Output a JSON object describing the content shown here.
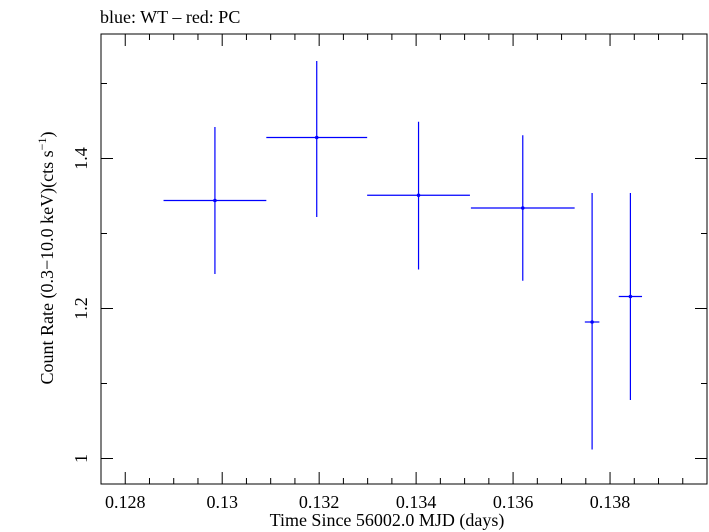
{
  "chart_data": {
    "type": "scatter",
    "title": "blue: WT – red: PC",
    "xlabel": "Time Since 56002.0 MJD (days)",
    "ylabel": "Count Rate (0.3−10.0 keV)(cts s⁻¹)",
    "ylabel_parts": {
      "prefix": "Count Rate (0.3−10.0 keV)(cts s",
      "superscript": "−1",
      "suffix": ")"
    },
    "xlim": [
      0.1275,
      0.14
    ],
    "ylim": [
      0.966,
      1.566
    ],
    "xticks_major": [
      0.128,
      0.13,
      0.132,
      0.134,
      0.136,
      0.138
    ],
    "xtick_labels": [
      "0.128",
      "0.13",
      "0.132",
      "0.134",
      "0.136",
      "0.138"
    ],
    "yticks_major": [
      1.0,
      1.2,
      1.4
    ],
    "ytick_labels": [
      "1",
      "1.2",
      "1.4"
    ],
    "xticks_minor_step": 0.0005,
    "yticks_minor_step": 0.1,
    "series": [
      {
        "name": "WT",
        "color": "#0000ff",
        "points": [
          {
            "x": 0.12985,
            "xerr": 0.00106,
            "y": 1.344,
            "yerr_low": 0.098,
            "yerr_high": 0.098
          },
          {
            "x": 0.13195,
            "xerr": 0.00104,
            "y": 1.428,
            "yerr_low": 0.106,
            "yerr_high": 0.102
          },
          {
            "x": 0.13405,
            "xerr": 0.00106,
            "y": 1.351,
            "yerr_low": 0.099,
            "yerr_high": 0.098
          },
          {
            "x": 0.1362,
            "xerr": 0.00107,
            "y": 1.334,
            "yerr_low": 0.097,
            "yerr_high": 0.097
          },
          {
            "x": 0.13763,
            "xerr": 0.00015,
            "y": 1.182,
            "yerr_low": 0.17,
            "yerr_high": 0.172
          },
          {
            "x": 0.13842,
            "xerr": 0.00024,
            "y": 1.216,
            "yerr_low": 0.138,
            "yerr_high": 0.138
          }
        ]
      }
    ]
  }
}
